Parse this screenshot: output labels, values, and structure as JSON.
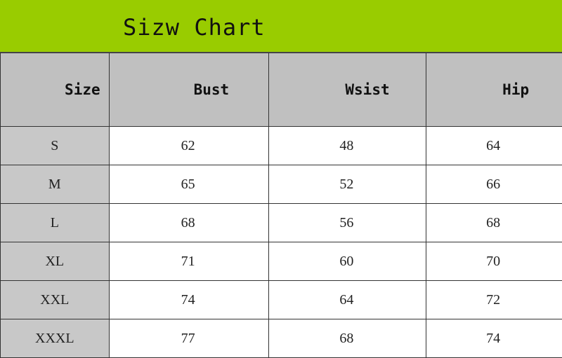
{
  "title": "Sizw Chart",
  "colors": {
    "title_band": "#99cc00",
    "header_bg": "#c0c0c0",
    "size_col_bg": "#c8c8c8"
  },
  "headers": [
    "Size",
    "Bust",
    "Wsist",
    "Hip"
  ],
  "rows": [
    [
      "S",
      "62",
      "48",
      "64"
    ],
    [
      "M",
      "65",
      "52",
      "66"
    ],
    [
      "L",
      "68",
      "56",
      "68"
    ],
    [
      "XL",
      "71",
      "60",
      "70"
    ],
    [
      "XXL",
      "74",
      "64",
      "72"
    ],
    [
      "XXXL",
      "77",
      "68",
      "74"
    ]
  ]
}
